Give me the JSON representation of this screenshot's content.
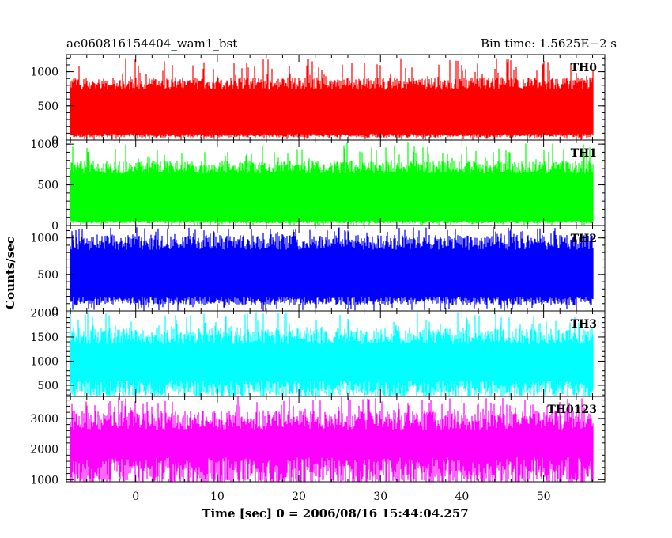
{
  "header": {
    "left_title": "ae060816154404_wam1_bst",
    "right_title": "Bin time: 1.5625E−2 s"
  },
  "chart_data": {
    "type": "line",
    "x_label": "Time [sec] 0 = 2006/08/16 15:44:04.257",
    "y_label": "Counts/sec",
    "x_range": [
      -8.5,
      57.5
    ],
    "x_ticks": [
      "0",
      "10",
      "20",
      "30",
      "40",
      "50"
    ],
    "x_tick_values": [
      0,
      10,
      20,
      30,
      40,
      50
    ],
    "data_x_range": [
      -8,
      56
    ],
    "bin_time_s": 0.015625,
    "grid": false,
    "legend": "none",
    "panels": [
      {
        "label": "TH0",
        "color": "#ff0000",
        "ylim": [
          0,
          1250
        ],
        "y_ticks": [
          "0",
          "500",
          "1000"
        ],
        "y_tick_values": [
          0,
          500,
          1000
        ],
        "baseline_low": 60,
        "typical_high": 900,
        "peak_high": 1200
      },
      {
        "label": "TH1",
        "color": "#00ff00",
        "ylim": [
          0,
          1050
        ],
        "y_ticks": [
          "0",
          "500",
          "1000"
        ],
        "y_tick_values": [
          0,
          500,
          1000
        ],
        "baseline_low": 40,
        "typical_high": 780,
        "peak_high": 1020
      },
      {
        "label": "TH2",
        "color": "#0000ff",
        "ylim": [
          0,
          1170
        ],
        "y_ticks": [
          "0",
          "500",
          "1000"
        ],
        "y_tick_values": [
          0,
          500,
          1000
        ],
        "baseline_low": 130,
        "typical_high": 1020,
        "peak_high": 1150
      },
      {
        "label": "TH3",
        "color": "#00ffff",
        "ylim": [
          270,
          2040
        ],
        "y_ticks": [
          "500",
          "1000",
          "1500",
          "2000"
        ],
        "y_tick_values": [
          500,
          1000,
          1500,
          2000
        ],
        "baseline_low": 400,
        "typical_high": 1650,
        "peak_high": 2020
      },
      {
        "label": "TH0123",
        "color": "#ff00ff",
        "ylim": [
          930,
          3720
        ],
        "y_ticks": [
          "1000",
          "2000",
          "3000"
        ],
        "y_tick_values": [
          1000,
          2000,
          3000
        ],
        "baseline_low": 1150,
        "typical_high": 3200,
        "peak_high": 3700
      }
    ]
  }
}
